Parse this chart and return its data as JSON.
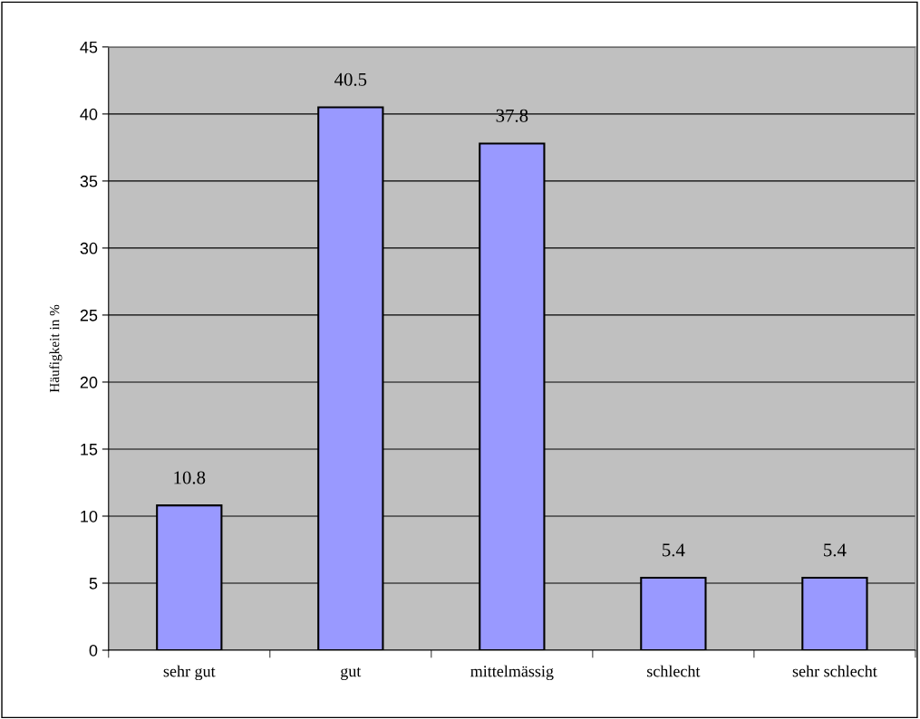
{
  "chart_data": {
    "type": "bar",
    "ylabel": "Häufigkeit in %",
    "categories": [
      "sehr gut",
      "gut",
      "mittelmässig",
      "schlecht",
      "sehr schlecht"
    ],
    "values": [
      10.8,
      40.5,
      37.8,
      5.4,
      5.4
    ],
    "color": "#9999ff",
    "ylim": [
      0,
      45
    ],
    "yticks": [
      0,
      5,
      10,
      15,
      20,
      25,
      30,
      35,
      40,
      45
    ],
    "grid": "y",
    "data_labels": true
  }
}
